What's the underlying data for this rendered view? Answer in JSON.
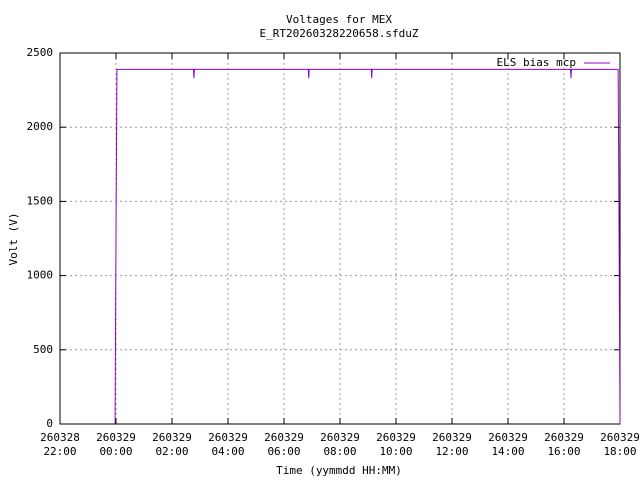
{
  "chart_data": {
    "type": "line",
    "title": "Voltages for MEX",
    "subtitle": "E_RT20260328220658.sfduZ",
    "x_label": "Time (yymmdd HH:MM)",
    "y_label": "Volt (V)",
    "legend": "top-right",
    "grid": true,
    "xlim": [
      "260328 22:00",
      "260329 18:00"
    ],
    "xticks": [
      "260328 22:00",
      "260329 00:00",
      "260329 02:00",
      "260329 04:00",
      "260329 06:00",
      "260329 08:00",
      "260329 10:00",
      "260329 12:00",
      "260329 14:00",
      "260329 16:00",
      "260329 18:00"
    ],
    "ylim": [
      0,
      2500
    ],
    "yticks": [
      0,
      500,
      1000,
      1500,
      2000,
      2500
    ],
    "x": [
      "260328 23:58",
      "260329 00:00",
      "260329 00:02",
      "260329 02:46",
      "260329 02:47",
      "260329 02:48",
      "260329 06:52",
      "260329 06:53",
      "260329 06:54",
      "260329 09:07",
      "260329 09:08",
      "260329 09:09",
      "260329 16:14",
      "260329 16:15",
      "260329 16:16",
      "260329 17:56",
      "260329 17:58",
      "260329 18:00"
    ],
    "series": [
      {
        "name": "ELS bias mcp",
        "color": "#9400d3",
        "values": [
          0,
          1280,
          2390,
          2390,
          2330,
          2390,
          2390,
          2330,
          2390,
          2390,
          2330,
          2390,
          2390,
          2330,
          2390,
          2390,
          1280,
          0
        ]
      }
    ]
  }
}
